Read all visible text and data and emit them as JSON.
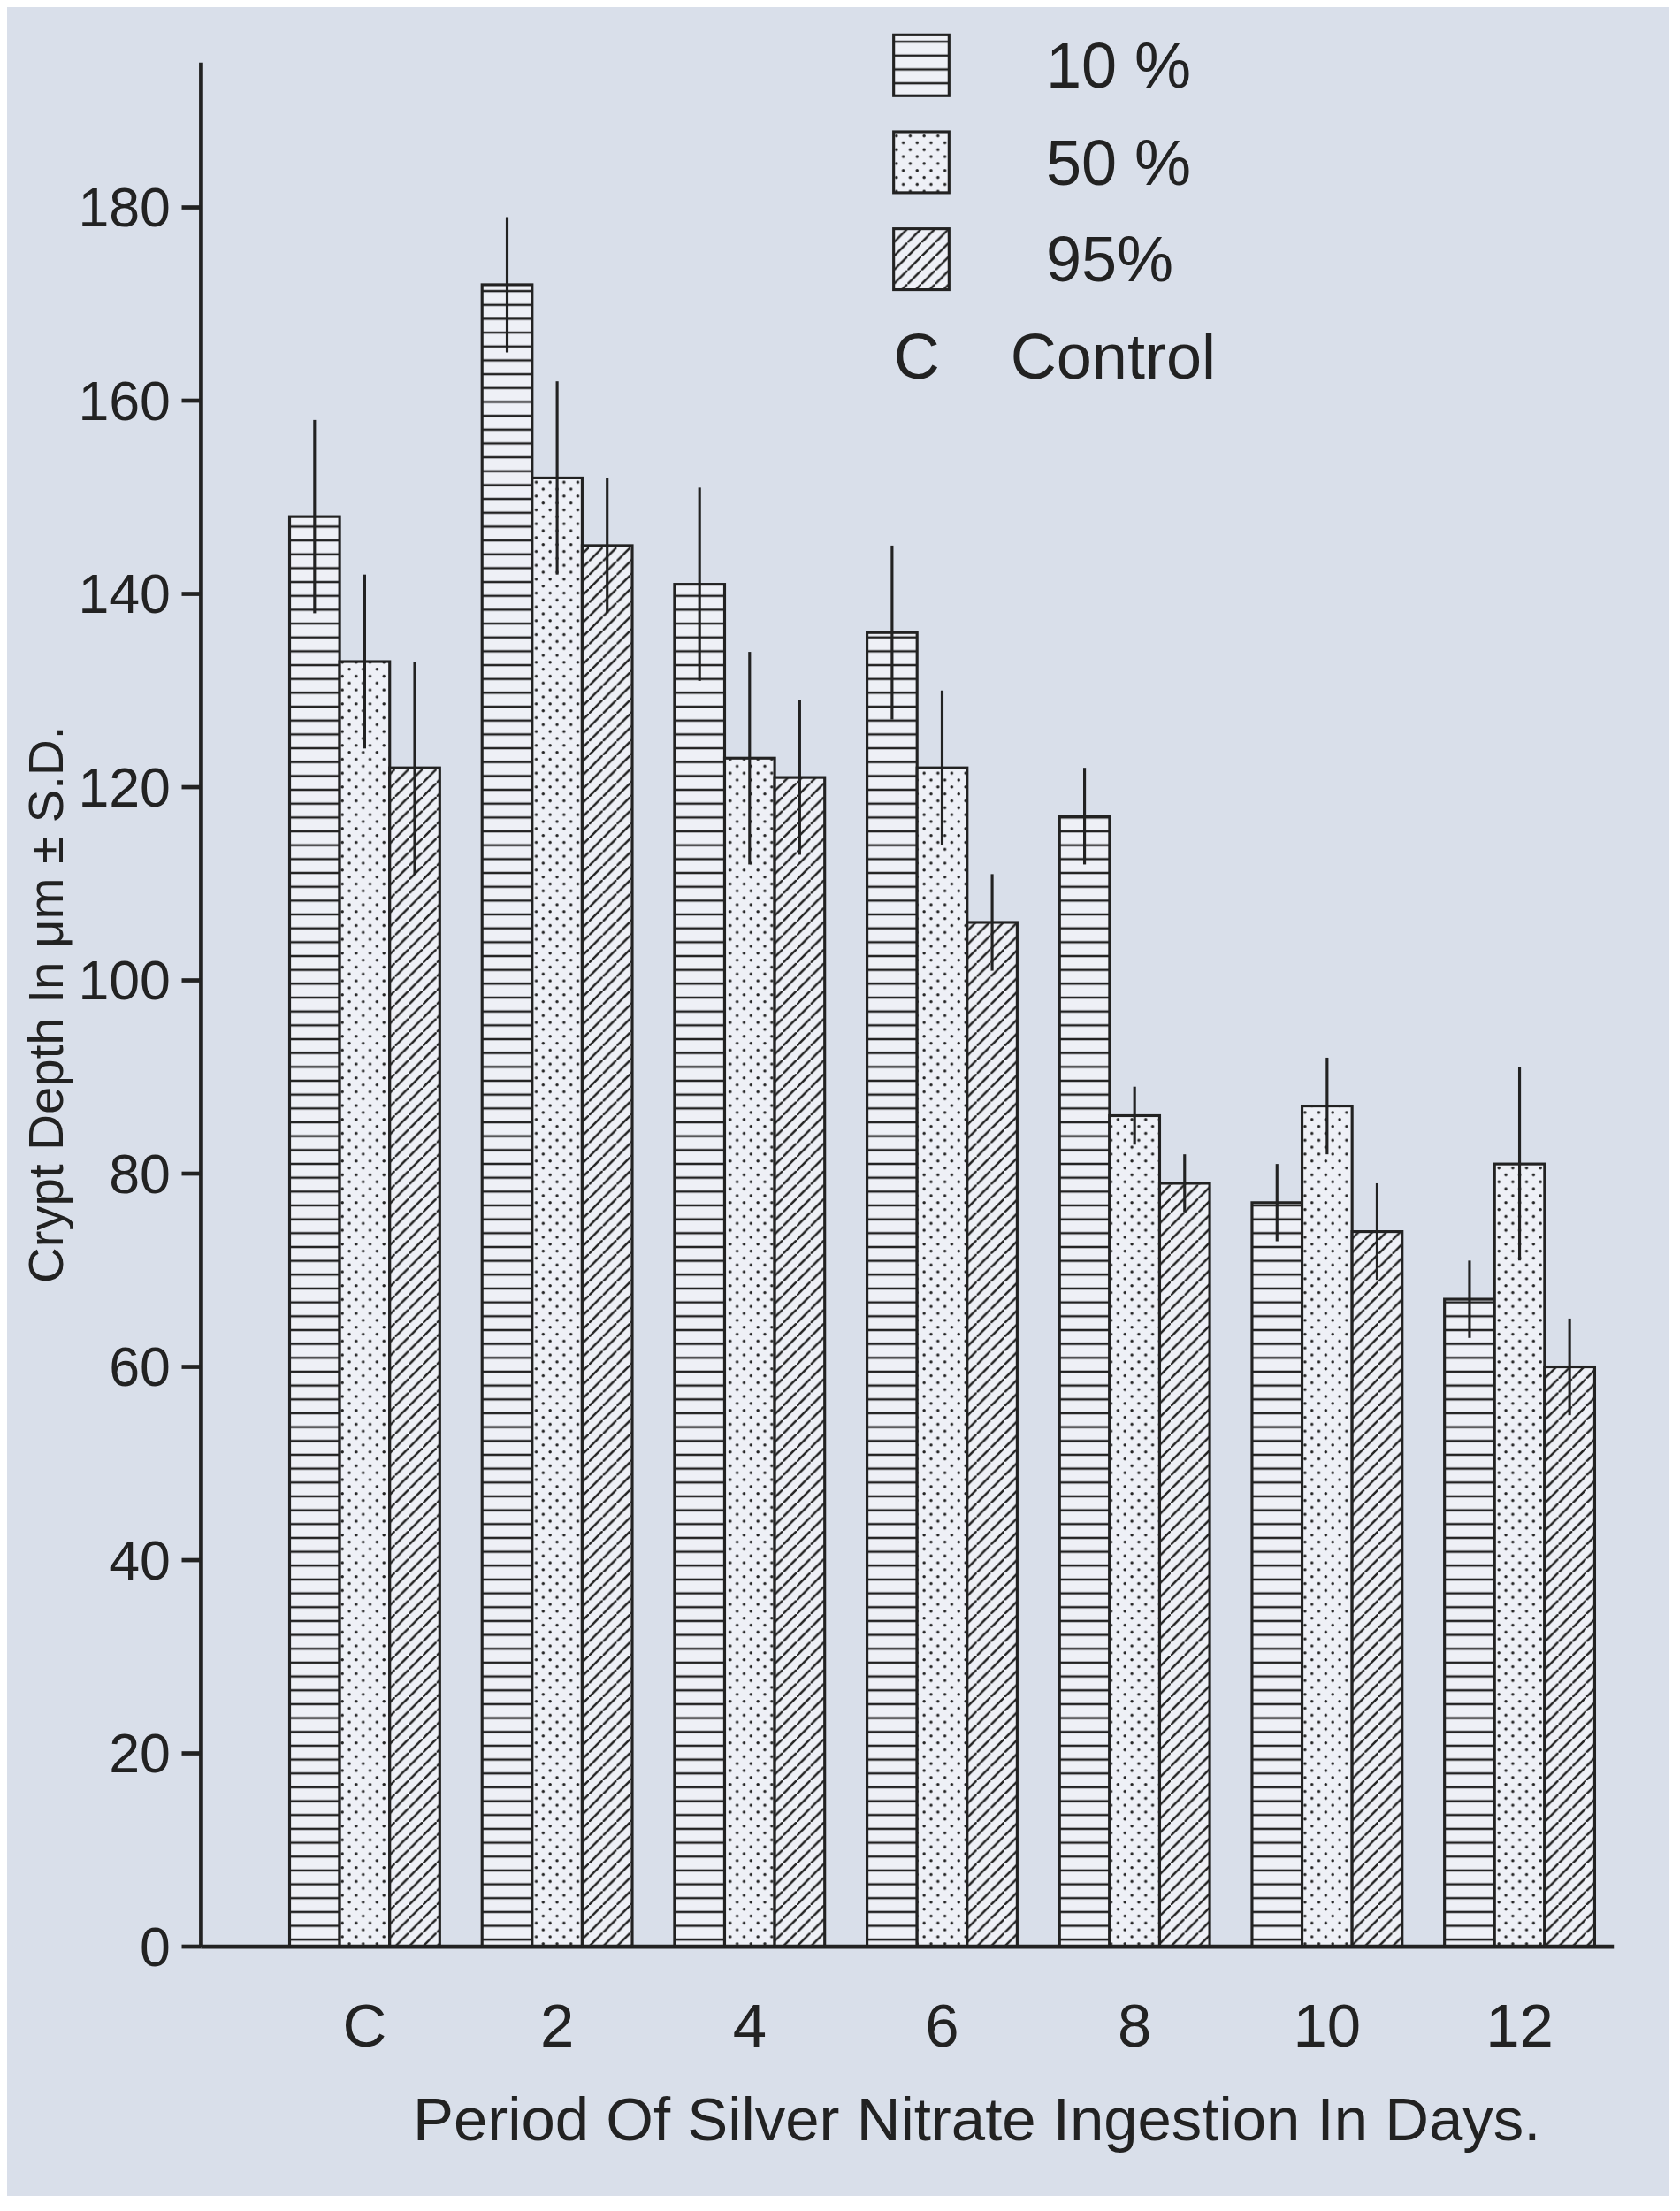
{
  "chart_data": {
    "type": "bar",
    "xlabel": "Period Of Silver Nitrate Ingestion In Days.",
    "ylabel": "Crypt Depth In μm ± S.D.",
    "categories": [
      "C",
      "2",
      "4",
      "6",
      "8",
      "10",
      "12"
    ],
    "series": [
      {
        "name": "10 %",
        "color": "#222222",
        "values": [
          148,
          172,
          141,
          136,
          117,
          77,
          67
        ],
        "errors": [
          10,
          7,
          10,
          9,
          5,
          4,
          4
        ]
      },
      {
        "name": "50 %",
        "color": "#222222",
        "values": [
          133,
          152,
          123,
          122,
          86,
          87,
          81
        ],
        "errors": [
          9,
          10,
          11,
          8,
          3,
          5,
          10
        ]
      },
      {
        "name": "95%",
        "color": "#222222",
        "values": [
          122,
          145,
          121,
          106,
          79,
          74,
          60
        ],
        "errors": [
          11,
          7,
          8,
          5,
          3,
          5,
          5
        ]
      }
    ],
    "ylim": [
      0,
      195
    ],
    "yticks": [
      0,
      20,
      40,
      60,
      80,
      100,
      120,
      140,
      160,
      180
    ],
    "grid": false,
    "legend": "top right",
    "annotations": [
      "C    Control"
    ]
  }
}
